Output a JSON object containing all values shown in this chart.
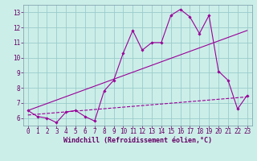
{
  "xlabel": "Windchill (Refroidissement éolien,°C)",
  "bg_color": "#cceee8",
  "line_color": "#990099",
  "grid_color": "#99cccc",
  "spine_color": "#7799aa",
  "xlim": [
    -0.5,
    23.5
  ],
  "ylim": [
    5.5,
    13.5
  ],
  "yticks": [
    6,
    7,
    8,
    9,
    10,
    11,
    12,
    13
  ],
  "xticks": [
    0,
    1,
    2,
    3,
    4,
    5,
    6,
    7,
    8,
    9,
    10,
    11,
    12,
    13,
    14,
    15,
    16,
    17,
    18,
    19,
    20,
    21,
    22,
    23
  ],
  "line1_x": [
    0,
    1,
    2,
    3,
    4,
    5,
    6,
    7,
    8,
    9,
    10,
    11,
    12,
    13,
    14,
    15,
    16,
    17,
    18,
    19,
    20,
    21,
    22,
    23
  ],
  "line1_y": [
    6.5,
    6.1,
    6.0,
    5.7,
    6.4,
    6.5,
    6.1,
    5.8,
    7.8,
    8.5,
    10.3,
    11.8,
    10.5,
    11.0,
    11.0,
    12.8,
    13.2,
    12.7,
    11.6,
    12.8,
    9.1,
    8.5,
    6.6,
    7.5
  ],
  "line2_x": [
    0,
    23
  ],
  "line2_y": [
    6.5,
    11.8
  ],
  "line3_x": [
    0,
    23
  ],
  "line3_y": [
    6.2,
    7.4
  ],
  "tick_labelsize": 5.5,
  "xlabel_fontsize": 6.0,
  "tick_color": "#660066"
}
